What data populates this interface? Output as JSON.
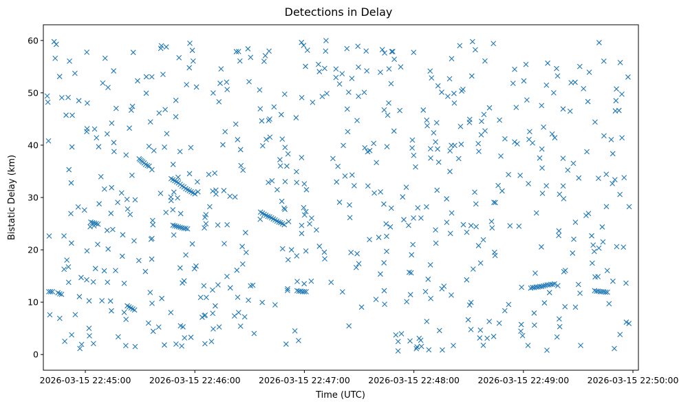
{
  "chart_data": {
    "type": "scatter",
    "title": "Detections in Delay",
    "xlabel": "Time (UTC)",
    "ylabel": "Bistatic Delay (km)",
    "marker": "x",
    "color": "#1f77b4",
    "grid": false,
    "legend": "none",
    "x_axis": {
      "type": "time",
      "range_seconds_from_first_tick": [
        -23,
        303
      ],
      "ticks": [
        {
          "label": "2026-03-15 22:45:00",
          "seconds": 0
        },
        {
          "label": "2026-03-15 22:46:00",
          "seconds": 60
        },
        {
          "label": "2026-03-15 22:47:00",
          "seconds": 120
        },
        {
          "label": "2026-03-15 22:48:00",
          "seconds": 180
        },
        {
          "label": "2026-03-15 22:49:00",
          "seconds": 240
        },
        {
          "label": "2026-03-15 22:50:00",
          "seconds": 300
        }
      ]
    },
    "y_axis": {
      "range": [
        -3,
        63
      ],
      "ticks": [
        0,
        10,
        20,
        30,
        40,
        50,
        60
      ]
    },
    "point_groups": [
      {
        "name": "scattered",
        "x_range_seconds": [
          -22,
          298
        ],
        "y_range": [
          0.5,
          60
        ],
        "count": 620
      },
      {
        "name": "track-1",
        "points": [
          [
            29.5,
            37.4
          ],
          [
            30.1,
            37.2
          ],
          [
            30.8,
            37.0
          ],
          [
            31.4,
            36.8
          ],
          [
            32.2,
            36.6
          ],
          [
            33.0,
            36.3
          ],
          [
            34.0,
            36.1
          ],
          [
            35.0,
            36.0
          ]
        ]
      },
      {
        "name": "track-2",
        "points": [
          [
            47,
            33.6
          ],
          [
            48,
            33.4
          ],
          [
            49,
            33.2
          ],
          [
            50,
            33.0
          ],
          [
            51,
            32.8
          ],
          [
            52,
            32.5
          ],
          [
            53,
            32.2
          ],
          [
            54,
            32.0
          ],
          [
            55,
            31.7
          ],
          [
            56,
            31.5
          ],
          [
            57,
            31.3
          ],
          [
            58,
            31.1
          ],
          [
            59,
            30.9
          ],
          [
            60,
            30.7
          ]
        ]
      },
      {
        "name": "track-3",
        "points": [
          [
            48,
            24.7
          ],
          [
            49,
            24.6
          ],
          [
            50,
            24.5
          ],
          [
            51,
            24.4
          ],
          [
            52,
            24.3
          ],
          [
            53,
            24.2
          ],
          [
            54,
            24.1
          ],
          [
            55,
            24.1
          ],
          [
            56,
            24.0
          ]
        ]
      },
      {
        "name": "track-4",
        "points": [
          [
            96,
            27.2
          ],
          [
            97,
            27.0
          ],
          [
            98,
            26.8
          ],
          [
            99,
            26.6
          ],
          [
            100,
            26.4
          ],
          [
            101,
            26.3
          ],
          [
            102,
            26.1
          ],
          [
            103,
            25.9
          ],
          [
            104,
            25.7
          ],
          [
            105,
            25.5
          ],
          [
            106,
            25.3
          ],
          [
            107,
            25.2
          ],
          [
            108,
            25.0
          ],
          [
            109,
            24.8
          ]
        ]
      },
      {
        "name": "track-5",
        "points": [
          [
            -20,
            12.0
          ],
          [
            -19,
            12.0
          ],
          [
            -18,
            12.0
          ],
          [
            -15,
            11.8
          ],
          [
            -14,
            11.6
          ],
          [
            -13,
            11.5
          ]
        ]
      },
      {
        "name": "track-6",
        "points": [
          [
            116,
            12.2
          ],
          [
            117,
            12.1
          ],
          [
            118,
            12.1
          ],
          [
            119,
            12.0
          ],
          [
            120,
            12.0
          ],
          [
            121,
            12.0
          ]
        ]
      },
      {
        "name": "track-7",
        "points": [
          [
            244,
            12.7
          ],
          [
            245,
            12.8
          ],
          [
            246,
            12.8
          ],
          [
            247,
            12.9
          ],
          [
            248,
            12.9
          ],
          [
            249,
            13.0
          ],
          [
            250,
            13.0
          ],
          [
            251,
            13.1
          ],
          [
            252,
            13.2
          ],
          [
            253,
            13.3
          ],
          [
            254,
            13.3
          ],
          [
            255,
            13.4
          ],
          [
            256,
            13.4
          ],
          [
            257,
            13.5
          ]
        ]
      },
      {
        "name": "track-8",
        "points": [
          [
            279,
            12.2
          ],
          [
            280,
            12.1
          ],
          [
            281,
            12.1
          ],
          [
            282,
            12.0
          ],
          [
            283,
            12.0
          ],
          [
            284,
            12.0
          ],
          [
            285,
            11.9
          ],
          [
            286,
            11.9
          ]
        ]
      },
      {
        "name": "track-9",
        "points": [
          [
            3,
            25.3
          ],
          [
            4,
            25.2
          ],
          [
            5,
            25.1
          ],
          [
            6,
            25.0
          ],
          [
            7,
            24.9
          ]
        ]
      },
      {
        "name": "track-10",
        "points": [
          [
            23,
            9.3
          ],
          [
            24,
            9.1
          ],
          [
            25,
            8.9
          ],
          [
            26,
            8.7
          ],
          [
            27,
            8.5
          ]
        ]
      }
    ]
  }
}
